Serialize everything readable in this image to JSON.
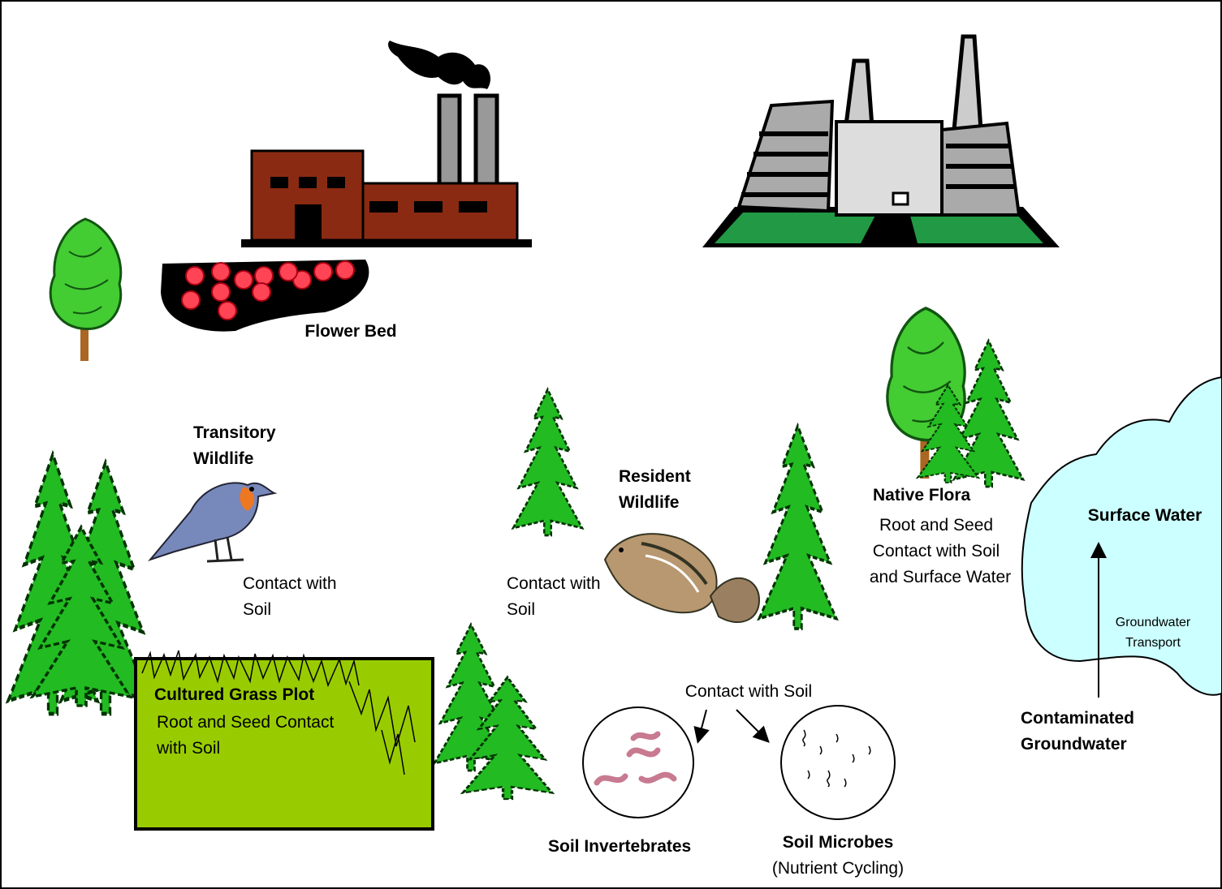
{
  "labels": {
    "flower_bed": "Flower Bed",
    "transitory_wildlife": [
      "Transitory",
      "Wildlife"
    ],
    "bird_contact": [
      "Contact with",
      "Soil"
    ],
    "resident_wildlife": [
      "Resident",
      "Wildlife"
    ],
    "resident_contact": [
      "Contact with",
      "Soil"
    ],
    "native_flora": "Native Flora",
    "native_flora_contact": [
      "Root and Seed",
      "Contact with Soil",
      "and Surface Water"
    ],
    "surface_water": "Surface Water",
    "groundwater_transport": [
      "Groundwater",
      "Transport"
    ],
    "contaminated_groundwater": [
      "Contaminated",
      "Groundwater"
    ],
    "cultured_grass_plot": "Cultured Grass Plot",
    "grass_contact": [
      "Root and Seed Contact",
      "with Soil"
    ],
    "soil_contact": "Contact with Soil",
    "soil_invertebrates": "Soil Invertebrates",
    "soil_microbes": "Soil Microbes",
    "nutrient_cycling": "(Nutrient Cycling)"
  }
}
